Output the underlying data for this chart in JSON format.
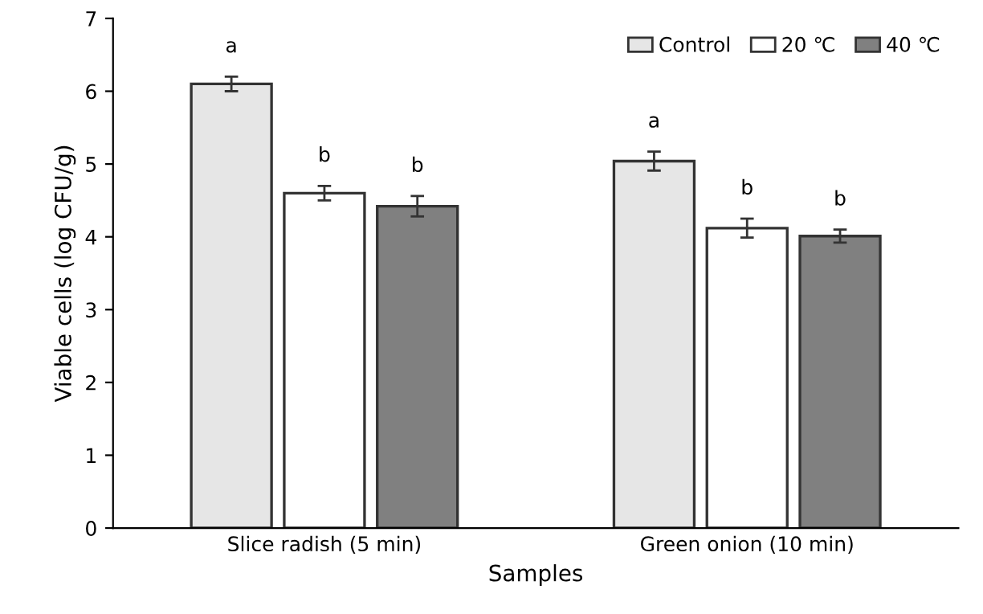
{
  "chart_data": {
    "type": "bar",
    "xlabel": "Samples",
    "ylabel": "Viable cells (log CFU/g)",
    "categories": [
      "Slice radish (5 min)",
      "Green onion (10 min)"
    ],
    "series": [
      {
        "name": "Control",
        "color": "#e6e6e6",
        "values": [
          6.1,
          5.04
        ],
        "errors": [
          0.1,
          0.13
        ]
      },
      {
        "name": "20 ℃",
        "color": "#ffffff",
        "values": [
          4.6,
          4.12
        ],
        "errors": [
          0.1,
          0.13
        ]
      },
      {
        "name": "40 ℃",
        "color": "#808080",
        "values": [
          4.42,
          4.01
        ],
        "errors": [
          0.14,
          0.09
        ]
      }
    ],
    "annotations": [
      "a",
      "b",
      "b",
      "a",
      "b",
      "b"
    ],
    "ylim": [
      0,
      7
    ],
    "yticks": [
      0,
      1,
      2,
      3,
      4,
      5,
      6,
      7
    ],
    "grid": false,
    "legend": "top right"
  }
}
